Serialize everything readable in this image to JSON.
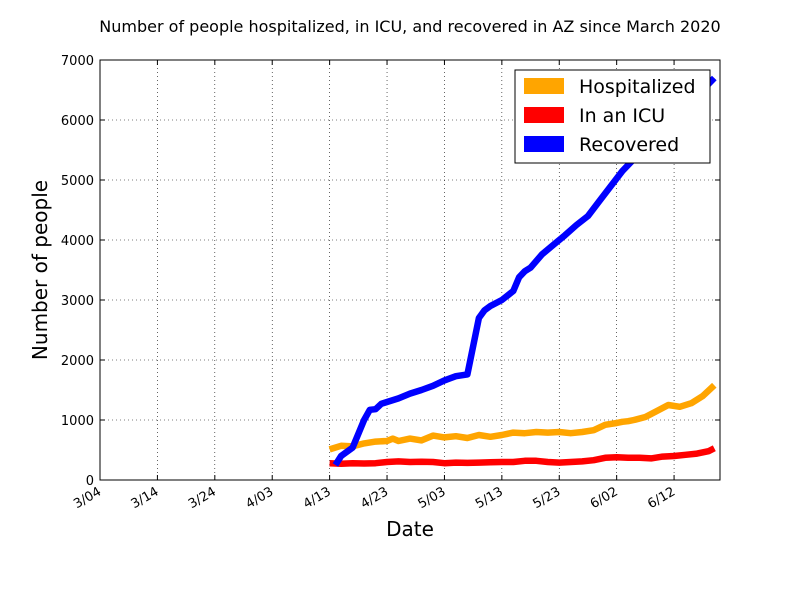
{
  "chart_data": {
    "type": "line",
    "title": "Number of people hospitalized, in ICU, and recovered in AZ since March 2020",
    "xlabel": "Date",
    "ylabel": "Number of people",
    "xlim": [
      "2020-03-04",
      "2020-06-20"
    ],
    "ylim": [
      0,
      7000
    ],
    "x_ticks": [
      "3/04",
      "3/14",
      "3/24",
      "4/03",
      "4/13",
      "4/23",
      "5/03",
      "5/13",
      "5/23",
      "6/02",
      "6/12"
    ],
    "x_tick_dates": [
      "2020-03-04",
      "2020-03-14",
      "2020-03-24",
      "2020-04-03",
      "2020-04-13",
      "2020-04-23",
      "2020-05-03",
      "2020-05-13",
      "2020-05-23",
      "2020-06-02",
      "2020-06-12"
    ],
    "y_ticks": [
      0,
      1000,
      2000,
      3000,
      4000,
      5000,
      6000,
      7000
    ],
    "grid": true,
    "legend_position": "top-right",
    "series": [
      {
        "name": "Hospitalized",
        "color": "#ffa500",
        "x": [
          "2020-04-13",
          "2020-04-15",
          "2020-04-17",
          "2020-04-19",
          "2020-04-21",
          "2020-04-23",
          "2020-04-24",
          "2020-04-25",
          "2020-04-27",
          "2020-04-29",
          "2020-05-01",
          "2020-05-03",
          "2020-05-05",
          "2020-05-07",
          "2020-05-09",
          "2020-05-11",
          "2020-05-13",
          "2020-05-15",
          "2020-05-17",
          "2020-05-19",
          "2020-05-21",
          "2020-05-23",
          "2020-05-25",
          "2020-05-27",
          "2020-05-29",
          "2020-05-31",
          "2020-06-02",
          "2020-06-03",
          "2020-06-04",
          "2020-06-05",
          "2020-06-07",
          "2020-06-09",
          "2020-06-11",
          "2020-06-13",
          "2020-06-15",
          "2020-06-17",
          "2020-06-19"
        ],
        "y": [
          510,
          570,
          560,
          610,
          640,
          650,
          690,
          650,
          690,
          660,
          740,
          710,
          730,
          700,
          750,
          720,
          750,
          790,
          780,
          800,
          790,
          800,
          780,
          800,
          830,
          920,
          950,
          970,
          980,
          1000,
          1050,
          1150,
          1250,
          1220,
          1280,
          1400,
          1580
        ]
      },
      {
        "name": "In an ICU",
        "color": "#ff0000",
        "x": [
          "2020-04-13",
          "2020-04-15",
          "2020-04-17",
          "2020-04-19",
          "2020-04-21",
          "2020-04-23",
          "2020-04-25",
          "2020-04-27",
          "2020-04-29",
          "2020-05-01",
          "2020-05-03",
          "2020-05-05",
          "2020-05-07",
          "2020-05-09",
          "2020-05-11",
          "2020-05-13",
          "2020-05-15",
          "2020-05-17",
          "2020-05-19",
          "2020-05-21",
          "2020-05-23",
          "2020-05-25",
          "2020-05-27",
          "2020-05-29",
          "2020-05-31",
          "2020-06-02",
          "2020-06-04",
          "2020-06-06",
          "2020-06-08",
          "2020-06-10",
          "2020-06-12",
          "2020-06-14",
          "2020-06-16",
          "2020-06-18",
          "2020-06-19"
        ],
        "y": [
          280,
          270,
          280,
          275,
          280,
          300,
          310,
          300,
          305,
          300,
          280,
          290,
          285,
          290,
          295,
          300,
          300,
          320,
          320,
          300,
          290,
          300,
          310,
          330,
          370,
          380,
          370,
          370,
          360,
          390,
          400,
          420,
          440,
          480,
          530
        ]
      },
      {
        "name": "Recovered",
        "color": "#0000ff",
        "x": [
          "2020-04-14",
          "2020-04-15",
          "2020-04-17",
          "2020-04-19",
          "2020-04-20",
          "2020-04-21",
          "2020-04-22",
          "2020-04-23",
          "2020-04-25",
          "2020-04-27",
          "2020-04-29",
          "2020-05-01",
          "2020-05-03",
          "2020-05-05",
          "2020-05-07",
          "2020-05-09",
          "2020-05-10",
          "2020-05-11",
          "2020-05-13",
          "2020-05-15",
          "2020-05-16",
          "2020-05-17",
          "2020-05-18",
          "2020-05-20",
          "2020-05-22",
          "2020-05-24",
          "2020-05-26",
          "2020-05-28",
          "2020-05-30",
          "2020-06-01",
          "2020-06-03",
          "2020-06-05",
          "2020-06-07",
          "2020-06-10",
          "2020-06-13",
          "2020-06-16",
          "2020-06-18",
          "2020-06-19"
        ],
        "y": [
          250,
          400,
          540,
          1000,
          1170,
          1180,
          1270,
          1300,
          1360,
          1440,
          1500,
          1570,
          1660,
          1730,
          1760,
          2700,
          2830,
          2900,
          3000,
          3150,
          3380,
          3480,
          3540,
          3760,
          3920,
          4080,
          4250,
          4400,
          4650,
          4900,
          5150,
          5350,
          5500,
          5800,
          6050,
          6350,
          6600,
          6700
        ]
      }
    ]
  }
}
